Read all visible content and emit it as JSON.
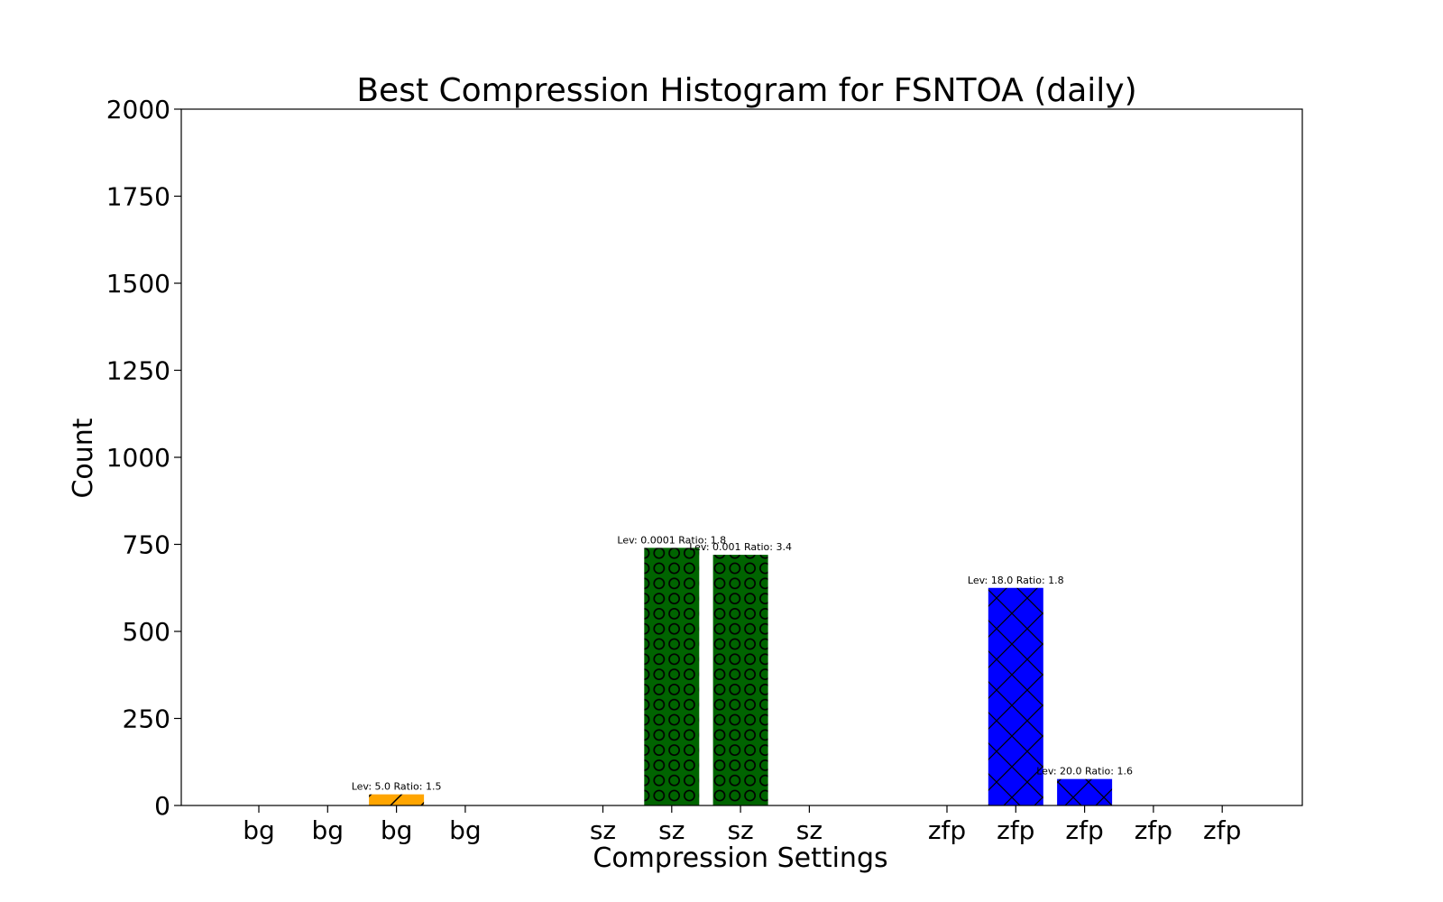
{
  "chart_data": {
    "type": "bar",
    "title": "Best Compression Histogram for FSNTOA (daily)",
    "xlabel": "Compression Settings",
    "ylabel": "Count",
    "ylim": [
      0,
      2000
    ],
    "yticks": [
      0,
      250,
      500,
      750,
      1000,
      1250,
      1500,
      1750,
      2000
    ],
    "grid": false,
    "legend": "none",
    "groups": [
      {
        "name": "bg",
        "color": "#ffa500",
        "hatch": "diagonal",
        "categories": [
          "bg",
          "bg",
          "bg",
          "bg"
        ],
        "values": [
          0,
          0,
          32,
          0
        ],
        "labels": [
          "",
          "",
          "Lev: 5.0 Ratio: 1.5",
          ""
        ]
      },
      {
        "name": "sz",
        "color": "#006400",
        "hatch": "circles",
        "categories": [
          "sz",
          "sz",
          "sz",
          "sz"
        ],
        "values": [
          0,
          740,
          720,
          0
        ],
        "labels": [
          "",
          "Lev: 0.0001 Ratio: 1.8",
          "Lev: 0.001 Ratio: 3.4",
          ""
        ]
      },
      {
        "name": "zfp",
        "color": "#0000ff",
        "hatch": "crosshatch",
        "categories": [
          "zfp",
          "zfp",
          "zfp",
          "zfp",
          "zfp"
        ],
        "values": [
          0,
          625,
          76,
          0,
          0
        ],
        "labels": [
          "",
          "Lev: 18.0 Ratio: 1.8",
          "Lev: 20.0 Ratio: 1.6",
          "",
          ""
        ]
      }
    ]
  }
}
